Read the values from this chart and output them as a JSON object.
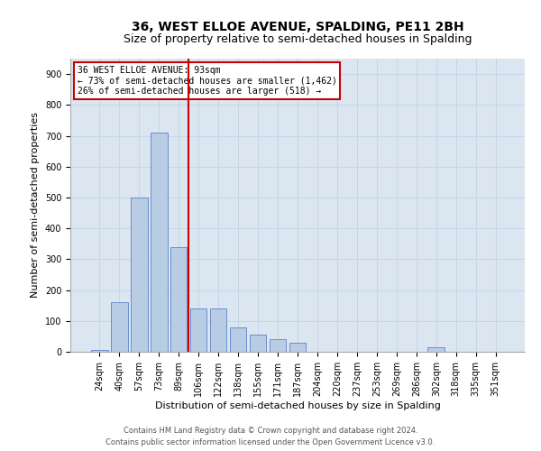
{
  "title": "36, WEST ELLOE AVENUE, SPALDING, PE11 2BH",
  "subtitle": "Size of property relative to semi-detached houses in Spalding",
  "xlabel": "Distribution of semi-detached houses by size in Spalding",
  "ylabel": "Number of semi-detached properties",
  "categories": [
    "24sqm",
    "40sqm",
    "57sqm",
    "73sqm",
    "89sqm",
    "106sqm",
    "122sqm",
    "138sqm",
    "155sqm",
    "171sqm",
    "187sqm",
    "204sqm",
    "220sqm",
    "237sqm",
    "253sqm",
    "269sqm",
    "286sqm",
    "302sqm",
    "318sqm",
    "335sqm",
    "351sqm"
  ],
  "values": [
    5,
    160,
    500,
    710,
    340,
    140,
    140,
    80,
    55,
    40,
    30,
    0,
    0,
    0,
    0,
    0,
    0,
    15,
    0,
    0,
    0
  ],
  "vline_x_index": 4,
  "bar_color": "#b8cce4",
  "bar_edge_color": "#4472c4",
  "vline_color": "#cc0000",
  "annotation_box_edgecolor": "#cc0000",
  "annotation_text_line1": "36 WEST ELLOE AVENUE: 93sqm",
  "annotation_text_line2": "← 73% of semi-detached houses are smaller (1,462)",
  "annotation_text_line3": "26% of semi-detached houses are larger (518) →",
  "footer_line1": "Contains HM Land Registry data © Crown copyright and database right 2024.",
  "footer_line2": "Contains public sector information licensed under the Open Government Licence v3.0.",
  "ylim": [
    0,
    950
  ],
  "yticks": [
    0,
    100,
    200,
    300,
    400,
    500,
    600,
    700,
    800,
    900
  ],
  "grid_color": "#c8d4e8",
  "bg_color": "#dce6f1",
  "title_fontsize": 10,
  "subtitle_fontsize": 9,
  "tick_fontsize": 7,
  "ylabel_fontsize": 8,
  "xlabel_fontsize": 8,
  "annotation_fontsize": 7,
  "footer_fontsize": 6
}
